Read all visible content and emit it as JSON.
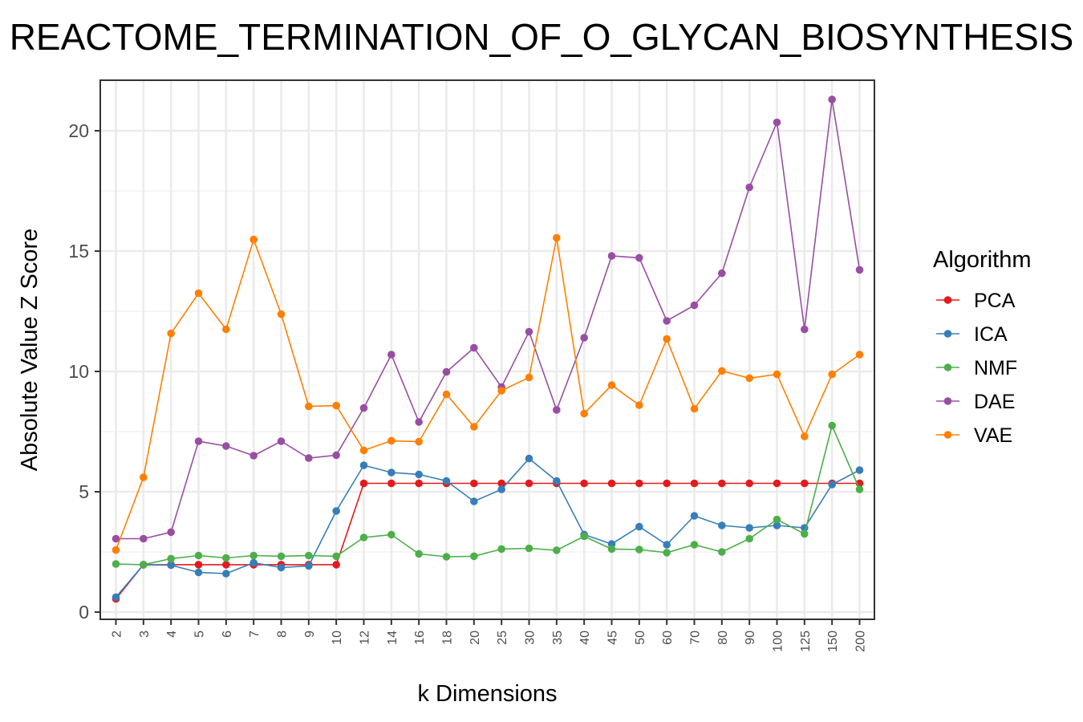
{
  "chart_data": {
    "type": "line",
    "title": "REACTOME_TERMINATION_OF_O_GLYCAN_BIOSYNTHESIS",
    "xlabel": "k Dimensions",
    "ylabel": "Absolute Value Z Score",
    "categories": [
      "2",
      "3",
      "4",
      "5",
      "6",
      "7",
      "8",
      "9",
      "10",
      "12",
      "14",
      "16",
      "18",
      "20",
      "25",
      "30",
      "35",
      "40",
      "45",
      "50",
      "60",
      "70",
      "80",
      "90",
      "100",
      "125",
      "150",
      "200"
    ],
    "ylim": [
      -0.3,
      22.1
    ],
    "yticks": [
      0,
      5,
      10,
      15,
      20
    ],
    "grid": true,
    "legend": {
      "title": "Algorithm",
      "position": "right"
    },
    "series": [
      {
        "name": "PCA",
        "color": "#e41a1c",
        "values": [
          0.55,
          1.97,
          1.97,
          1.97,
          1.97,
          1.97,
          1.97,
          1.97,
          1.97,
          5.35,
          5.35,
          5.35,
          5.35,
          5.35,
          5.35,
          5.35,
          5.35,
          5.35,
          5.35,
          5.35,
          5.35,
          5.35,
          5.35,
          5.35,
          5.35,
          5.35,
          5.35,
          5.35
        ]
      },
      {
        "name": "ICA",
        "color": "#377eb8",
        "values": [
          0.62,
          1.97,
          1.95,
          1.65,
          1.6,
          2.05,
          1.85,
          1.92,
          4.2,
          6.1,
          5.8,
          5.72,
          5.45,
          4.6,
          5.1,
          6.38,
          5.45,
          3.22,
          2.83,
          3.55,
          2.8,
          4.0,
          3.6,
          3.5,
          3.6,
          3.5,
          5.3,
          5.9
        ]
      },
      {
        "name": "NMF",
        "color": "#4daf4a",
        "values": [
          2.0,
          1.97,
          2.22,
          2.35,
          2.25,
          2.35,
          2.32,
          2.35,
          2.32,
          3.1,
          3.22,
          2.42,
          2.3,
          2.32,
          2.62,
          2.65,
          2.57,
          3.15,
          2.62,
          2.6,
          2.47,
          2.8,
          2.5,
          3.05,
          3.85,
          3.25,
          7.75,
          5.1
        ]
      },
      {
        "name": "DAE",
        "color": "#984ea3",
        "values": [
          3.05,
          3.05,
          3.32,
          7.1,
          6.9,
          6.5,
          7.1,
          6.4,
          6.52,
          8.48,
          10.7,
          7.9,
          9.98,
          10.98,
          9.35,
          11.65,
          8.4,
          11.4,
          14.8,
          14.72,
          12.1,
          12.75,
          14.08,
          17.65,
          20.35,
          11.75,
          21.3,
          14.22
        ]
      },
      {
        "name": "VAE",
        "color": "#ff7f00",
        "values": [
          2.58,
          5.6,
          11.58,
          13.25,
          11.75,
          15.48,
          12.38,
          8.55,
          8.58,
          6.72,
          7.12,
          7.08,
          9.05,
          7.7,
          9.2,
          9.75,
          15.55,
          8.25,
          9.43,
          8.6,
          11.35,
          8.45,
          10.02,
          9.72,
          9.88,
          7.3,
          9.88,
          10.7
        ]
      }
    ]
  }
}
